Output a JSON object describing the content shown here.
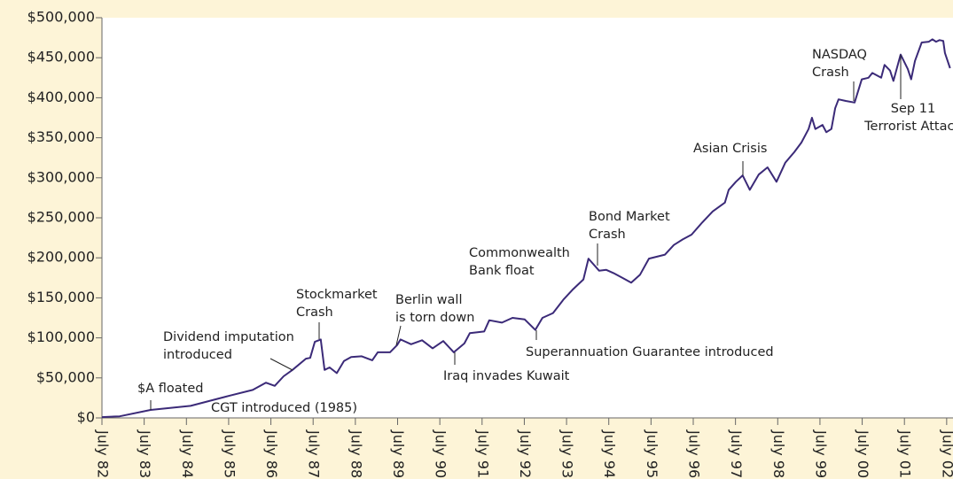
{
  "chart_data": {
    "type": "line",
    "annotations": [
      {
        "text": [
          "$A floated"
        ]
      },
      {
        "text": [
          "Dividend imputation",
          "introduced"
        ]
      },
      {
        "text": [
          "CGT introduced (1985)"
        ]
      },
      {
        "text": [
          "Stockmarket",
          "Crash"
        ]
      },
      {
        "text": [
          "Berlin wall",
          "is torn down"
        ]
      },
      {
        "text": [
          "Iraq invades Kuwait"
        ]
      },
      {
        "text": [
          "Commonwealth",
          "Bank float"
        ]
      },
      {
        "text": [
          "Superannuation Guarantee introduced"
        ]
      },
      {
        "text": [
          "Bond Market",
          "Crash"
        ]
      },
      {
        "text": [
          "Asian Crisis"
        ]
      },
      {
        "text": [
          "NASDAQ",
          "Crash"
        ]
      },
      {
        "text": [
          "Sep 11",
          "Terrorist Attack"
        ]
      }
    ],
    "x": [
      1982.5,
      1982.92,
      1983.65,
      1984.6,
      1985.54,
      1986.07,
      1986.38,
      1986.59,
      1986.8,
      1987.01,
      1987.33,
      1987.43,
      1987.54,
      1987.68,
      1987.77,
      1987.89,
      1988.06,
      1988.23,
      1988.4,
      1988.65,
      1988.9,
      1989.03,
      1989.32,
      1989.49,
      1989.57,
      1989.82,
      1990.08,
      1990.33,
      1990.58,
      1990.83,
      1991.08,
      1991.21,
      1991.55,
      1991.67,
      1991.97,
      1992.22,
      1992.51,
      1992.76,
      1992.93,
      1993.18,
      1993.43,
      1993.64,
      1993.9,
      1994.02,
      1994.27,
      1994.44,
      1994.61,
      1994.82,
      1995.03,
      1995.24,
      1995.45,
      1995.83,
      1996.04,
      1996.25,
      1996.46,
      1996.71,
      1996.96,
      1997.25,
      1997.34,
      1997.51,
      1997.67,
      1997.84,
      1998.05,
      1998.26,
      1998.47,
      1998.68,
      1998.89,
      1999.06,
      1999.23,
      1999.31,
      1999.39,
      1999.56,
      1999.65,
      1999.77,
      1999.86,
      1999.94,
      2000.11,
      2000.32,
      2000.49,
      2000.65,
      2000.74,
      2000.95,
      2001.03,
      2001.16,
      2001.24,
      2001.41,
      2001.58,
      2001.66,
      2001.75,
      2001.91,
      2002.08,
      2002.16,
      2002.25,
      2002.33,
      2002.42,
      2002.46,
      2002.58
    ],
    "series": [
      {
        "color": "#3b2a78",
        "values": [
          1000,
          2000,
          10000,
          15000,
          28000,
          35000,
          44000,
          40000,
          52000,
          60000,
          74000,
          75000,
          95000,
          98000,
          60000,
          63000,
          56000,
          71000,
          76000,
          77000,
          72000,
          82000,
          82000,
          91000,
          98000,
          92000,
          97000,
          87000,
          96000,
          82000,
          93000,
          106000,
          108000,
          122000,
          119000,
          125000,
          123000,
          110000,
          125000,
          131000,
          148000,
          160000,
          173000,
          199000,
          184000,
          185000,
          181000,
          175000,
          169000,
          179000,
          199000,
          204000,
          216000,
          223000,
          229000,
          244000,
          258000,
          269000,
          285000,
          295000,
          303000,
          285000,
          304000,
          313000,
          295000,
          319000,
          332000,
          344000,
          361000,
          375000,
          361000,
          366000,
          357000,
          361000,
          387000,
          398000,
          396000,
          394000,
          423000,
          425000,
          431000,
          425000,
          441000,
          434000,
          421000,
          454000,
          436000,
          423000,
          446000,
          469000,
          470000,
          473000,
          470000,
          472000,
          471000,
          456000,
          437000
        ]
      }
    ],
    "xlim": [
      1982.5,
      2002.65
    ],
    "xticks": [
      {
        "value": 1982.5,
        "label": "July 82"
      },
      {
        "value": 1983.5,
        "label": "July 83"
      },
      {
        "value": 1984.5,
        "label": "July 84"
      },
      {
        "value": 1985.5,
        "label": "July 85"
      },
      {
        "value": 1986.5,
        "label": "July 86"
      },
      {
        "value": 1987.5,
        "label": "July 87"
      },
      {
        "value": 1988.5,
        "label": "July 88"
      },
      {
        "value": 1989.5,
        "label": "July 89"
      },
      {
        "value": 1990.5,
        "label": "July 90"
      },
      {
        "value": 1991.5,
        "label": "July 91"
      },
      {
        "value": 1992.5,
        "label": "July 92"
      },
      {
        "value": 1993.5,
        "label": "July 93"
      },
      {
        "value": 1994.5,
        "label": "July 94"
      },
      {
        "value": 1995.5,
        "label": "July 95"
      },
      {
        "value": 1996.5,
        "label": "July 96"
      },
      {
        "value": 1997.5,
        "label": "July 97"
      },
      {
        "value": 1998.5,
        "label": "July 98"
      },
      {
        "value": 1999.5,
        "label": "July 99"
      },
      {
        "value": 2000.5,
        "label": "July 00"
      },
      {
        "value": 2001.5,
        "label": "July 01"
      },
      {
        "value": 2002.5,
        "label": "July 02"
      }
    ],
    "ylim": [
      0,
      500000
    ],
    "yticks": [
      {
        "value": 0,
        "label": "$0"
      },
      {
        "value": 50000,
        "label": "$50,000"
      },
      {
        "value": 100000,
        "label": "$100,000"
      },
      {
        "value": 150000,
        "label": "$150,000"
      },
      {
        "value": 200000,
        "label": "$200,000"
      },
      {
        "value": 250000,
        "label": "$250,000"
      },
      {
        "value": 300000,
        "label": "$300,000"
      },
      {
        "value": 350000,
        "label": "$350,000"
      },
      {
        "value": 400000,
        "label": "$400,000"
      },
      {
        "value": 450000,
        "label": "$450,000"
      },
      {
        "value": 500000,
        "label": "$500,000"
      }
    ]
  }
}
